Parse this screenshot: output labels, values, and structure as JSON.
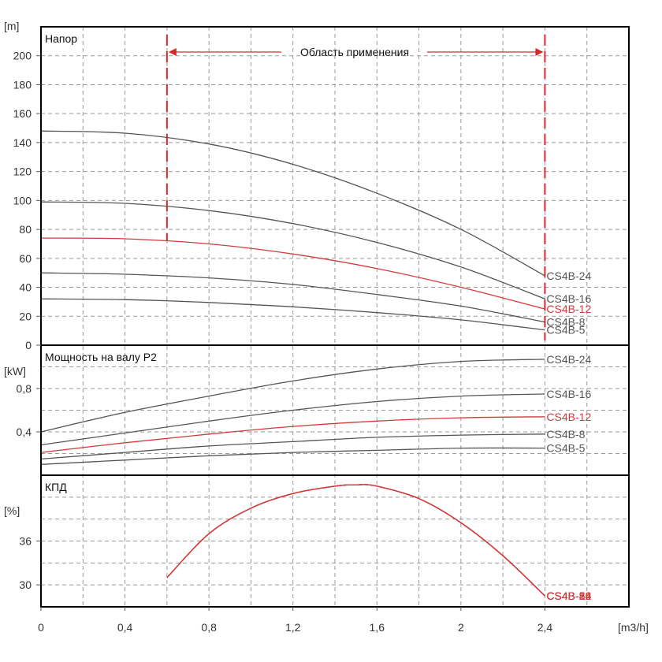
{
  "chart_data": {
    "type": "line",
    "colors": {
      "normal": "#555555",
      "highlight": "#d23a3a",
      "range_marker": "#d42a2a"
    },
    "x": {
      "unit_label": "[m3/h]",
      "range": [
        0,
        2.8
      ],
      "ticks": [
        0,
        0.4,
        0.8,
        1.2,
        1.6,
        2,
        2.4
      ],
      "tick_labels": [
        "0",
        "0,4",
        "0,8",
        "1,2",
        "1,6",
        "2",
        "2,4"
      ]
    },
    "application_range": {
      "label": "Область применения",
      "x_from": 0.6,
      "x_to": 2.4
    },
    "panels": [
      {
        "id": "head",
        "title": "Напор",
        "unit_label": "[m]",
        "y_range": [
          0,
          220
        ],
        "y_ticks": [
          0,
          20,
          40,
          60,
          80,
          100,
          120,
          140,
          160,
          180,
          200
        ],
        "y_tick_labels": [
          "0",
          "20",
          "40",
          "60",
          "80",
          "100",
          "120",
          "140",
          "160",
          "180",
          "200"
        ],
        "series": [
          {
            "name": "CS4B-24",
            "highlight": false,
            "x": [
              0,
              0.4,
              0.8,
              1.2,
              1.6,
              2.0,
              2.4
            ],
            "y": [
              148,
              146.5,
              139,
              125,
              105,
              80,
              48
            ]
          },
          {
            "name": "CS4B-16",
            "highlight": false,
            "x": [
              0,
              0.4,
              0.8,
              1.2,
              1.6,
              2.0,
              2.4
            ],
            "y": [
              99,
              98,
              93,
              84,
              71,
              54,
              32
            ]
          },
          {
            "name": "CS4B-12",
            "highlight": true,
            "x": [
              0,
              0.4,
              0.8,
              1.2,
              1.6,
              2.0,
              2.4
            ],
            "y": [
              74,
              73.5,
              70,
              63,
              53,
              40,
              25
            ]
          },
          {
            "name": "CS4B-8",
            "highlight": false,
            "x": [
              0,
              0.4,
              0.8,
              1.2,
              1.6,
              2.0,
              2.4
            ],
            "y": [
              50,
              49,
              46.5,
              42,
              35,
              27,
              16
            ]
          },
          {
            "name": "CS4B-5",
            "highlight": false,
            "x": [
              0,
              0.4,
              0.8,
              1.2,
              1.6,
              2.0,
              2.4
            ],
            "y": [
              32,
              31.5,
              29.5,
              26.5,
              22.5,
              17.5,
              10.5
            ]
          }
        ]
      },
      {
        "id": "power",
        "title": "Мощность на валу P2",
        "unit_label": "[kW]",
        "y_range": [
          0,
          1.2
        ],
        "y_ticks": [
          0.4,
          0.8
        ],
        "y_tick_labels": [
          "0,4",
          "0,8"
        ],
        "series": [
          {
            "name": "CS4B-24",
            "highlight": false,
            "x": [
              0,
              0.4,
              0.8,
              1.2,
              1.6,
              2.0,
              2.4
            ],
            "y": [
              0.4,
              0.58,
              0.73,
              0.87,
              0.98,
              1.05,
              1.07
            ]
          },
          {
            "name": "CS4B-16",
            "highlight": false,
            "x": [
              0,
              0.4,
              0.8,
              1.2,
              1.6,
              2.0,
              2.4
            ],
            "y": [
              0.28,
              0.39,
              0.5,
              0.6,
              0.68,
              0.73,
              0.75
            ]
          },
          {
            "name": "CS4B-12",
            "highlight": true,
            "x": [
              0,
              0.4,
              0.8,
              1.2,
              1.6,
              2.0,
              2.4
            ],
            "y": [
              0.21,
              0.3,
              0.38,
              0.45,
              0.5,
              0.53,
              0.54
            ]
          },
          {
            "name": "CS4B-8",
            "highlight": false,
            "x": [
              0,
              0.4,
              0.8,
              1.2,
              1.6,
              2.0,
              2.4
            ],
            "y": [
              0.15,
              0.21,
              0.27,
              0.31,
              0.35,
              0.37,
              0.38
            ]
          },
          {
            "name": "CS4B-5",
            "highlight": false,
            "x": [
              0,
              0.4,
              0.8,
              1.2,
              1.6,
              2.0,
              2.4
            ],
            "y": [
              0.1,
              0.14,
              0.18,
              0.21,
              0.23,
              0.25,
              0.25
            ]
          }
        ]
      },
      {
        "id": "efficiency",
        "title": "КПД",
        "unit_label": "[%]",
        "y_range": [
          27,
          45
        ],
        "y_ticks": [
          30,
          36
        ],
        "y_tick_labels": [
          "30",
          "36"
        ],
        "series": [
          {
            "name": "CS4B-24",
            "highlight": true,
            "x": [
              0.6,
              0.8,
              1.0,
              1.2,
              1.4,
              1.5,
              1.6,
              1.8,
              2.0,
              2.2,
              2.4
            ],
            "y": [
              31,
              37,
              40.5,
              42.5,
              43.5,
              43.7,
              43.5,
              41.8,
              38.5,
              34,
              28.5
            ]
          },
          {
            "name": "CS4B-16",
            "highlight": true,
            "x": [
              0.6,
              0.8,
              1.0,
              1.2,
              1.4,
              1.5,
              1.6,
              1.8,
              2.0,
              2.2,
              2.4
            ],
            "y": [
              31,
              37,
              40.5,
              42.5,
              43.5,
              43.7,
              43.5,
              41.8,
              38.5,
              34,
              28.5
            ]
          },
          {
            "name": "CS4B-12",
            "highlight": true,
            "x": [
              0.6,
              0.8,
              1.0,
              1.2,
              1.4,
              1.5,
              1.6,
              1.8,
              2.0,
              2.2,
              2.4
            ],
            "y": [
              31,
              37,
              40.5,
              42.5,
              43.5,
              43.7,
              43.5,
              41.8,
              38.5,
              34,
              28.5
            ]
          },
          {
            "name": "CS4B-8",
            "highlight": true,
            "x": [
              0.6,
              0.8,
              1.0,
              1.2,
              1.4,
              1.5,
              1.6,
              1.8,
              2.0,
              2.2,
              2.4
            ],
            "y": [
              31,
              37,
              40.5,
              42.5,
              43.5,
              43.7,
              43.5,
              41.8,
              38.5,
              34,
              28.5
            ]
          },
          {
            "name": "CS4B-5",
            "highlight": true,
            "x": [
              0.6,
              0.8,
              1.0,
              1.2,
              1.4,
              1.5,
              1.6,
              1.8,
              2.0,
              2.2,
              2.4
            ],
            "y": [
              31,
              37,
              40.5,
              42.5,
              43.5,
              43.7,
              43.5,
              41.8,
              38.5,
              34,
              28.5
            ]
          }
        ]
      }
    ]
  }
}
